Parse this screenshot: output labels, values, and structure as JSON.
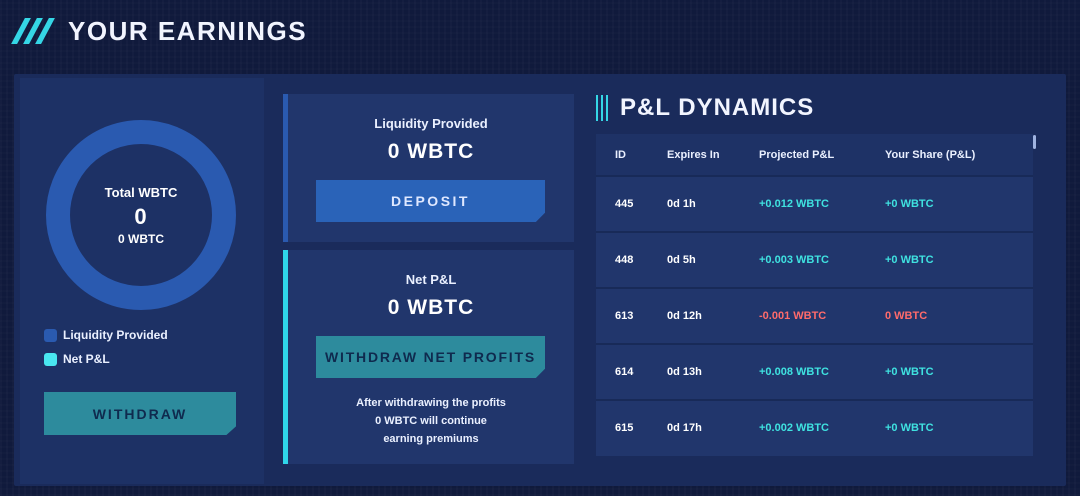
{
  "header": {
    "title": "YOUR EARNINGS"
  },
  "colors": {
    "accent_cyan": "#35d6e6",
    "liquidity_blue": "#2a5ab0",
    "positive": "#3fe2e0",
    "negative": "#ff6b6b"
  },
  "summary": {
    "donut_label": "Total WBTC",
    "donut_value": "0",
    "donut_sub": "0 WBTC",
    "legend": [
      {
        "label": "Liquidity Provided",
        "color": "#2a5ab0"
      },
      {
        "label": "Net P&L",
        "color": "#49e6f0"
      }
    ],
    "withdraw_label": "WITHDRAW"
  },
  "liquidity_card": {
    "label": "Liquidity Provided",
    "value": "0 WBTC",
    "button": "DEPOSIT"
  },
  "net_card": {
    "label": "Net P&L",
    "value": "0 WBTC",
    "button": "WITHDRAW NET PROFITS",
    "note_line1": "After withdrawing the profits",
    "note_line2": "0 WBTC will continue",
    "note_line3": "earning premiums"
  },
  "pl": {
    "title": "P&L DYNAMICS",
    "columns": [
      "ID",
      "Expires In",
      "Projected P&L",
      "Your Share (P&L)"
    ],
    "rows": [
      {
        "id": "445",
        "expires": "0d 1h",
        "projected": "+0.012 WBTC",
        "share": "+0 WBTC",
        "trend": "positive"
      },
      {
        "id": "448",
        "expires": "0d 5h",
        "projected": "+0.003 WBTC",
        "share": "+0 WBTC",
        "trend": "positive"
      },
      {
        "id": "613",
        "expires": "0d 12h",
        "projected": "-0.001 WBTC",
        "share": "0 WBTC",
        "trend": "negative"
      },
      {
        "id": "614",
        "expires": "0d 13h",
        "projected": "+0.008 WBTC",
        "share": "+0 WBTC",
        "trend": "positive"
      },
      {
        "id": "615",
        "expires": "0d 17h",
        "projected": "+0.002 WBTC",
        "share": "+0 WBTC",
        "trend": "positive"
      }
    ]
  }
}
